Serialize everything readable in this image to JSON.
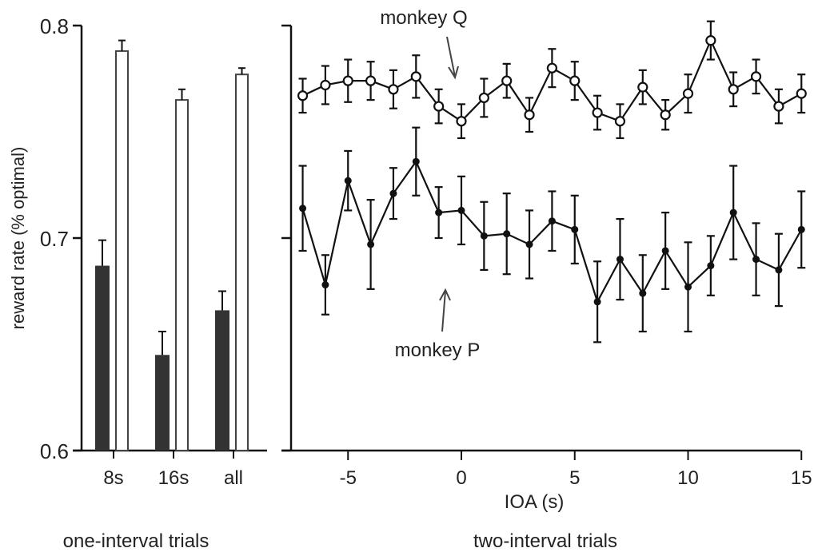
{
  "chart_data": [
    {
      "type": "bar",
      "panel": "one-interval trials",
      "ylabel": "reward rate (% optimal)",
      "ylim": [
        0.6,
        0.8
      ],
      "yticks": [
        "0.6",
        "0.7",
        "0.8"
      ],
      "categories": [
        "8s",
        "16s",
        "all"
      ],
      "series": [
        {
          "name": "monkey P",
          "style": "filled",
          "values": [
            0.687,
            0.645,
            0.666
          ],
          "errors": [
            0.012,
            0.011,
            0.009
          ]
        },
        {
          "name": "monkey Q",
          "style": "open",
          "values": [
            0.788,
            0.765,
            0.777
          ],
          "errors": [
            0.005,
            0.005,
            0.003
          ]
        }
      ],
      "xlabel": "one-interval trials"
    },
    {
      "type": "line",
      "panel": "two-interval trials",
      "xlabel": "IOA (s)",
      "panel_label": "two-interval trials",
      "xlim": [
        -7.5,
        15
      ],
      "ylim": [
        0.6,
        0.8
      ],
      "xticks": [
        "-5",
        "0",
        "5",
        "10",
        "15"
      ],
      "x": [
        -7,
        -6,
        -5,
        -4,
        -3,
        -2,
        -1,
        0,
        1,
        2,
        3,
        4,
        5,
        6,
        7,
        8,
        9,
        10,
        11,
        12,
        13,
        14,
        15
      ],
      "series": [
        {
          "name": "monkey Q",
          "marker": "open-circle",
          "values": [
            0.767,
            0.772,
            0.774,
            0.774,
            0.77,
            0.776,
            0.762,
            0.755,
            0.766,
            0.774,
            0.758,
            0.78,
            0.774,
            0.759,
            0.755,
            0.771,
            0.758,
            0.768,
            0.793,
            0.77,
            0.776,
            0.762,
            0.768
          ],
          "errors": [
            0.008,
            0.009,
            0.01,
            0.009,
            0.009,
            0.01,
            0.008,
            0.008,
            0.009,
            0.008,
            0.008,
            0.009,
            0.009,
            0.008,
            0.008,
            0.008,
            0.007,
            0.009,
            0.009,
            0.008,
            0.008,
            0.008,
            0.009
          ]
        },
        {
          "name": "monkey P",
          "marker": "filled-circle",
          "values": [
            0.714,
            0.678,
            0.727,
            0.697,
            0.721,
            0.736,
            0.712,
            0.713,
            0.701,
            0.702,
            0.697,
            0.708,
            0.704,
            0.67,
            0.69,
            0.674,
            0.694,
            0.677,
            0.687,
            0.712,
            0.69,
            0.685,
            0.704
          ],
          "errors": [
            0.02,
            0.014,
            0.014,
            0.021,
            0.012,
            0.016,
            0.012,
            0.016,
            0.016,
            0.019,
            0.016,
            0.014,
            0.016,
            0.019,
            0.019,
            0.018,
            0.018,
            0.021,
            0.014,
            0.022,
            0.017,
            0.017,
            0.018
          ]
        }
      ],
      "annotations": [
        {
          "text": "monkey Q",
          "points_to": "monkey Q series"
        },
        {
          "text": "monkey P",
          "points_to": "monkey P series"
        }
      ]
    }
  ]
}
